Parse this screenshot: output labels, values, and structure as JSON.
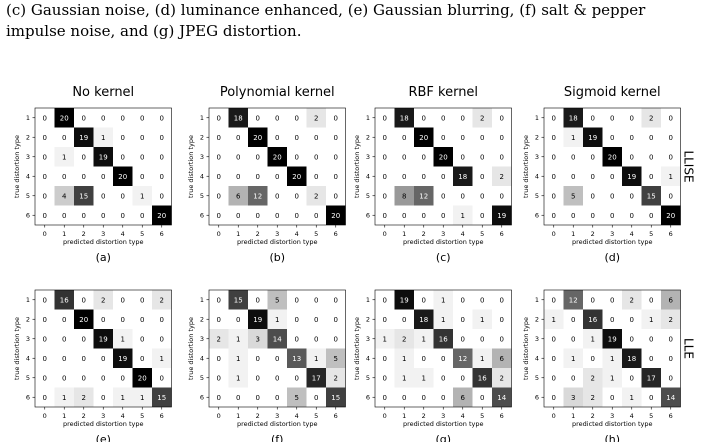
{
  "caption": {
    "line1": "(c) Gaussian noise, (d) luminance enhanced, (e) Gaussian blurring, (f) salt & pepper",
    "line2": "impulse noise, and (g) JPEG distortion."
  },
  "figure": {
    "column_titles": [
      "No kernel",
      "Polynomial kernel",
      "RBF kernel",
      "Sigmoid kernel"
    ],
    "row_labels": [
      "LLISE",
      "LLE"
    ],
    "xlabel": "predicted distortion type",
    "ylabel": "true distortion type",
    "x_ticks": [
      "0",
      "1",
      "2",
      "3",
      "4",
      "5",
      "6"
    ],
    "y_ticks": [
      "1",
      "2",
      "3",
      "4",
      "5",
      "6"
    ]
  },
  "chart_data": [
    {
      "type": "heatmap",
      "panel_label": "(a)",
      "values": [
        [
          0,
          20,
          0,
          0,
          0,
          0,
          0
        ],
        [
          0,
          0,
          19,
          1,
          0,
          0,
          0
        ],
        [
          0,
          1,
          0,
          19,
          0,
          0,
          0
        ],
        [
          0,
          0,
          0,
          0,
          20,
          0,
          0
        ],
        [
          0,
          4,
          15,
          0,
          0,
          1,
          0
        ],
        [
          0,
          0,
          0,
          0,
          0,
          0,
          20
        ]
      ]
    },
    {
      "type": "heatmap",
      "panel_label": "(b)",
      "values": [
        [
          0,
          18,
          0,
          0,
          0,
          2,
          0
        ],
        [
          0,
          0,
          20,
          0,
          0,
          0,
          0
        ],
        [
          0,
          0,
          0,
          20,
          0,
          0,
          0
        ],
        [
          0,
          0,
          0,
          0,
          20,
          0,
          0
        ],
        [
          0,
          6,
          12,
          0,
          0,
          2,
          0
        ],
        [
          0,
          0,
          0,
          0,
          0,
          0,
          20
        ]
      ]
    },
    {
      "type": "heatmap",
      "panel_label": "(c)",
      "values": [
        [
          0,
          18,
          0,
          0,
          0,
          2,
          0
        ],
        [
          0,
          0,
          20,
          0,
          0,
          0,
          0
        ],
        [
          0,
          0,
          0,
          20,
          0,
          0,
          0
        ],
        [
          0,
          0,
          0,
          0,
          18,
          0,
          2
        ],
        [
          0,
          8,
          12,
          0,
          0,
          0,
          0
        ],
        [
          0,
          0,
          0,
          0,
          1,
          0,
          19
        ]
      ]
    },
    {
      "type": "heatmap",
      "panel_label": "(d)",
      "values": [
        [
          0,
          18,
          0,
          0,
          0,
          2,
          0
        ],
        [
          0,
          1,
          19,
          0,
          0,
          0,
          0
        ],
        [
          0,
          0,
          0,
          20,
          0,
          0,
          0
        ],
        [
          0,
          0,
          0,
          0,
          19,
          0,
          1
        ],
        [
          0,
          5,
          0,
          0,
          0,
          15,
          0
        ],
        [
          0,
          0,
          0,
          0,
          0,
          0,
          20
        ]
      ]
    },
    {
      "type": "heatmap",
      "panel_label": "(e)",
      "values": [
        [
          0,
          16,
          0,
          2,
          0,
          0,
          2
        ],
        [
          0,
          0,
          20,
          0,
          0,
          0,
          0
        ],
        [
          0,
          0,
          0,
          19,
          1,
          0,
          0
        ],
        [
          0,
          0,
          0,
          0,
          19,
          0,
          1
        ],
        [
          0,
          0,
          0,
          0,
          0,
          20,
          0
        ],
        [
          0,
          1,
          2,
          0,
          1,
          1,
          15
        ]
      ]
    },
    {
      "type": "heatmap",
      "panel_label": "(f)",
      "values": [
        [
          0,
          15,
          0,
          5,
          0,
          0,
          0
        ],
        [
          0,
          0,
          19,
          1,
          0,
          0,
          0
        ],
        [
          2,
          1,
          3,
          14,
          0,
          0,
          0
        ],
        [
          0,
          1,
          0,
          0,
          13,
          1,
          5
        ],
        [
          0,
          1,
          0,
          0,
          0,
          17,
          2
        ],
        [
          0,
          0,
          0,
          0,
          5,
          0,
          15
        ]
      ]
    },
    {
      "type": "heatmap",
      "panel_label": "(g)",
      "values": [
        [
          0,
          19,
          0,
          1,
          0,
          0,
          0
        ],
        [
          0,
          0,
          18,
          1,
          0,
          1,
          0
        ],
        [
          1,
          2,
          1,
          16,
          0,
          0,
          0
        ],
        [
          0,
          1,
          0,
          0,
          12,
          1,
          6
        ],
        [
          0,
          1,
          1,
          0,
          0,
          16,
          2
        ],
        [
          0,
          0,
          0,
          0,
          6,
          0,
          14
        ]
      ]
    },
    {
      "type": "heatmap",
      "panel_label": "(h)",
      "values": [
        [
          0,
          12,
          0,
          0,
          2,
          0,
          6
        ],
        [
          1,
          0,
          16,
          0,
          0,
          1,
          2
        ],
        [
          0,
          0,
          1,
          19,
          0,
          0,
          0
        ],
        [
          0,
          1,
          0,
          1,
          18,
          0,
          0
        ],
        [
          0,
          0,
          2,
          1,
          0,
          17,
          0
        ],
        [
          0,
          3,
          2,
          0,
          1,
          0,
          14
        ]
      ]
    }
  ]
}
